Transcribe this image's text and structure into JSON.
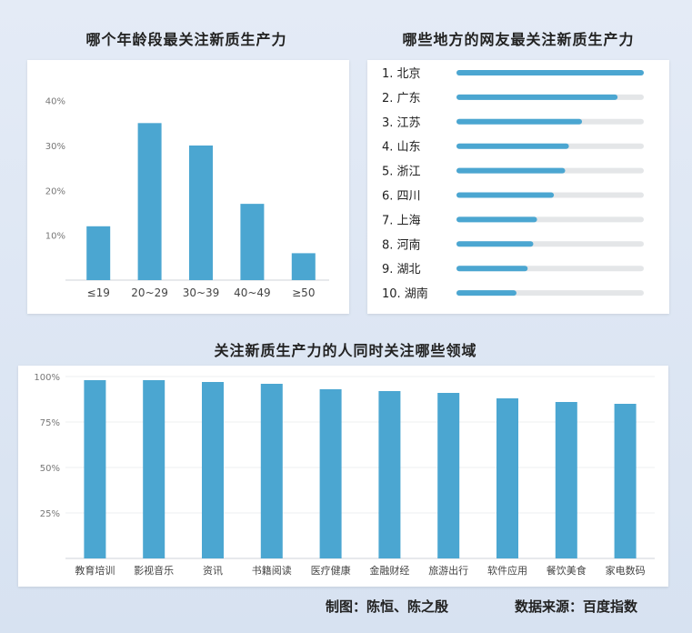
{
  "colors": {
    "bar": "#4ba6d1",
    "track": "#e4e6e8",
    "grid": "#eceff2",
    "axis": "#cfd3d8",
    "text": "#444444"
  },
  "chart_data": [
    {
      "type": "bar",
      "title": "哪个年龄段最关注新质生产力",
      "categories": [
        "≤19",
        "20~29",
        "30~39",
        "40~49",
        "≥50"
      ],
      "values": [
        12,
        35,
        30,
        17,
        6
      ],
      "ylim": [
        0,
        45
      ],
      "yticks": [
        10,
        20,
        30,
        40
      ],
      "ytick_labels": [
        "10%",
        "20%",
        "30%",
        "40%"
      ],
      "grid": false
    },
    {
      "type": "bar",
      "orientation": "horizontal",
      "title": "哪些地方的网友最关注新质生产力",
      "categories": [
        "1. 北京",
        "2. 广东",
        "3. 江苏",
        "4. 山东",
        "5. 浙江",
        "6. 四川",
        "7. 上海",
        "8. 河南",
        "9. 湖北",
        "10. 湖南"
      ],
      "values": [
        100,
        86,
        67,
        60,
        58,
        52,
        43,
        41,
        38,
        32
      ],
      "xlim": [
        0,
        100
      ]
    },
    {
      "type": "bar",
      "title": "关注新质生产力的人同时关注哪些领域",
      "categories": [
        "教育培训",
        "影视音乐",
        "资讯",
        "书籍阅读",
        "医疗健康",
        "金融财经",
        "旅游出行",
        "软件应用",
        "餐饮美食",
        "家电数码"
      ],
      "values": [
        98,
        98,
        97,
        96,
        93,
        92,
        91,
        88,
        86,
        85
      ],
      "ylim": [
        0,
        100
      ],
      "yticks": [
        25,
        50,
        75,
        100
      ],
      "ytick_labels": [
        "25%",
        "50%",
        "75%",
        "100%"
      ],
      "grid": true
    }
  ],
  "credits": {
    "maker": "制图：陈恒、陈之殷",
    "source": "数据来源：百度指数"
  }
}
